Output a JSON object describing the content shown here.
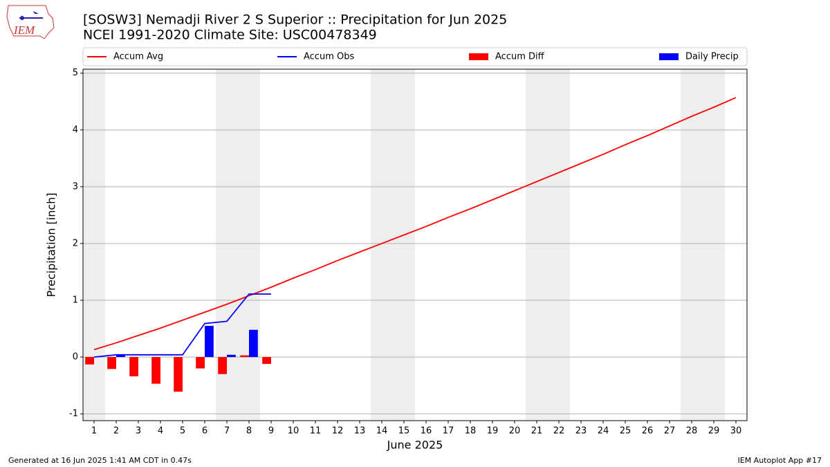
{
  "chart_data": {
    "type": "line",
    "title": "[SOSW3] Nemadji River 2 S Superior :: Precipitation for Jun 2025",
    "subtitle": "NCEI 1991-2020 Climate Site: USC00478349",
    "x_label": "June 2025",
    "y_label": "Precipitation [inch]",
    "x": [
      1,
      2,
      3,
      4,
      5,
      6,
      7,
      8,
      9,
      10,
      11,
      12,
      13,
      14,
      15,
      16,
      17,
      18,
      19,
      20,
      21,
      22,
      23,
      24,
      25,
      26,
      27,
      28,
      29,
      30
    ],
    "xlim": [
      0.5,
      30.5
    ],
    "xticks": [
      1,
      2,
      3,
      4,
      5,
      6,
      7,
      8,
      9,
      10,
      11,
      12,
      13,
      14,
      15,
      16,
      17,
      18,
      19,
      20,
      21,
      22,
      23,
      24,
      25,
      26,
      27,
      28,
      29,
      30
    ],
    "ylim": [
      -1.12,
      5.07
    ],
    "yticks": [
      -1,
      0,
      1,
      2,
      3,
      4,
      5
    ],
    "grid": true,
    "shaded_days": [
      1,
      7,
      8,
      14,
      15,
      21,
      22,
      28,
      29
    ],
    "series": [
      {
        "name": "Accum Avg",
        "type": "line",
        "color": "#ff0000",
        "values": [
          0.13,
          0.25,
          0.38,
          0.51,
          0.65,
          0.79,
          0.93,
          1.08,
          1.23,
          1.39,
          1.54,
          1.7,
          1.85,
          2.0,
          2.15,
          2.3,
          2.46,
          2.61,
          2.77,
          2.93,
          3.09,
          3.25,
          3.41,
          3.57,
          3.74,
          3.9,
          4.07,
          4.24,
          4.4,
          4.57
        ]
      },
      {
        "name": "Accum Obs",
        "type": "line",
        "color": "#0000ff",
        "values": [
          0.0,
          0.04,
          0.04,
          0.04,
          0.04,
          0.59,
          0.63,
          1.11,
          1.11,
          null,
          null,
          null,
          null,
          null,
          null,
          null,
          null,
          null,
          null,
          null,
          null,
          null,
          null,
          null,
          null,
          null,
          null,
          null,
          null,
          null
        ]
      },
      {
        "name": "Accum Diff",
        "type": "bar",
        "color": "#ff0000",
        "values": [
          -0.13,
          -0.21,
          -0.34,
          -0.47,
          -0.61,
          -0.2,
          -0.3,
          0.03,
          -0.12,
          null,
          null,
          null,
          null,
          null,
          null,
          null,
          null,
          null,
          null,
          null,
          null,
          null,
          null,
          null,
          null,
          null,
          null,
          null,
          null,
          null
        ]
      },
      {
        "name": "Daily Precip",
        "type": "bar",
        "color": "#0000ff",
        "values": [
          0.0,
          0.04,
          0.0,
          0.0,
          0.0,
          0.55,
          0.04,
          0.48,
          0.0,
          null,
          null,
          null,
          null,
          null,
          null,
          null,
          null,
          null,
          null,
          null,
          null,
          null,
          null,
          null,
          null,
          null,
          null,
          null,
          null,
          null
        ]
      }
    ]
  },
  "logo_text": "IEM",
  "footer_left": "Generated at 16 Jun 2025 1:41 AM CDT in 0.47s",
  "footer_right": "IEM Autoplot App #17"
}
